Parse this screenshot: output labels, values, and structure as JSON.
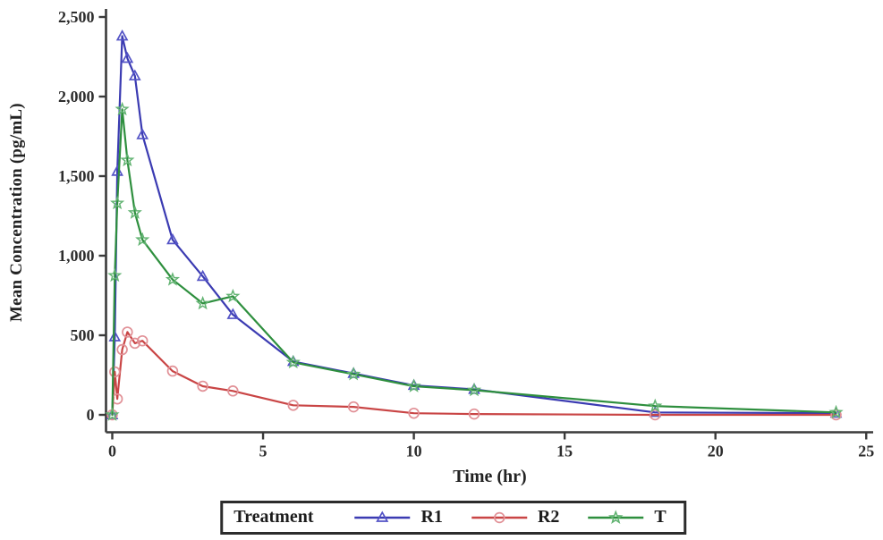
{
  "chart_data": {
    "type": "line",
    "title": "",
    "xlabel": "Time (hr)",
    "ylabel": "Mean Concentration (pg/mL)",
    "xlim": [
      -0.2,
      25.3
    ],
    "ylim": [
      0,
      2500
    ],
    "grid": false,
    "xticks": {
      "values": [
        0,
        5,
        10,
        15,
        20,
        25
      ],
      "labels": [
        "0",
        "5",
        "10",
        "15",
        "20",
        "25"
      ]
    },
    "yticks": {
      "values": [
        0,
        500,
        1000,
        1500,
        2000,
        2500
      ],
      "labels": [
        "0",
        "500",
        "1,000",
        "1,500",
        "2,000",
        "2,500"
      ]
    },
    "legend": {
      "position": "bottom",
      "title": "Treatment"
    },
    "x": [
      0,
      0.083,
      0.167,
      0.33,
      0.5,
      0.75,
      1,
      2,
      3,
      4,
      6,
      8,
      10,
      12,
      18,
      24
    ],
    "series": [
      {
        "name": "R1",
        "marker": "triangle",
        "color": "#3b3bb2",
        "marker_color": "#5353c6",
        "values": [
          0,
          490,
          1530,
          2380,
          2240,
          2130,
          1760,
          1100,
          870,
          630,
          335,
          260,
          185,
          160,
          15,
          10
        ]
      },
      {
        "name": "R2",
        "marker": "circle",
        "color": "#c94545",
        "marker_color": "#e19197",
        "values": [
          0,
          270,
          100,
          410,
          520,
          450,
          465,
          275,
          180,
          150,
          60,
          50,
          10,
          5,
          0,
          0
        ]
      },
      {
        "name": "T",
        "marker": "star",
        "color": "#2e8f3e",
        "marker_color": "#62b372",
        "values": [
          0,
          875,
          1330,
          1920,
          1600,
          1270,
          1100,
          850,
          700,
          745,
          330,
          255,
          180,
          155,
          55,
          15
        ]
      }
    ]
  }
}
